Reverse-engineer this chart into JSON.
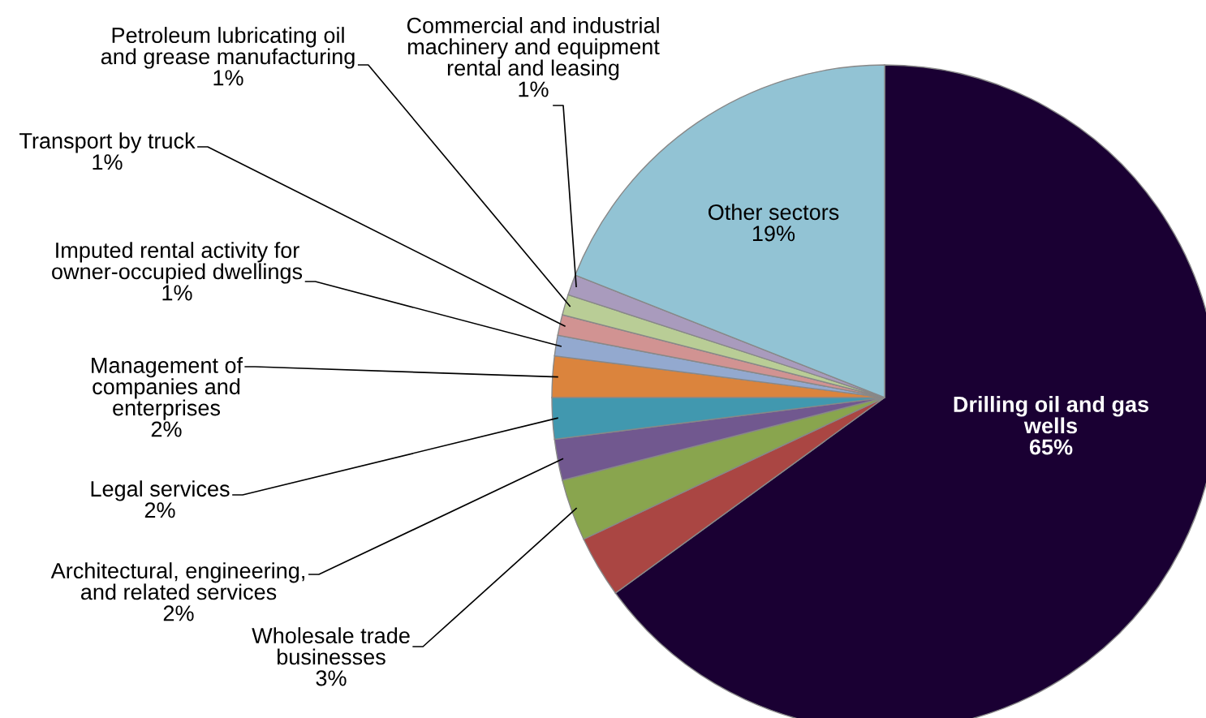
{
  "chart_data": {
    "type": "pie",
    "categories": [
      "Drilling oil and gas wells",
      null,
      "Wholesale trade businesses",
      "Architectural, engineering, and related services",
      "Legal services",
      "Management of companies and enterprises",
      "Imputed rental activity for owner-occupied dwellings",
      "Transport by truck",
      "Petroleum lubricating oil and grease manufacturing",
      "Commercial and industrial machinery and equipment rental and leasing",
      "Other sectors"
    ],
    "values": [
      65,
      3,
      3,
      2,
      2,
      2,
      1,
      1,
      1,
      1,
      19
    ],
    "value_labels": [
      "65%",
      null,
      "3%",
      "2%",
      "2%",
      "2%",
      "1%",
      "1%",
      "1%",
      "1%",
      "19%"
    ],
    "colors": [
      "#1a0033",
      "#aa4643",
      "#89a54e",
      "#71588f",
      "#4198af",
      "#db843d",
      "#93a9cf",
      "#d19392",
      "#b9cd96",
      "#a99bbd",
      "#92c3d4"
    ],
    "legend": false
  }
}
